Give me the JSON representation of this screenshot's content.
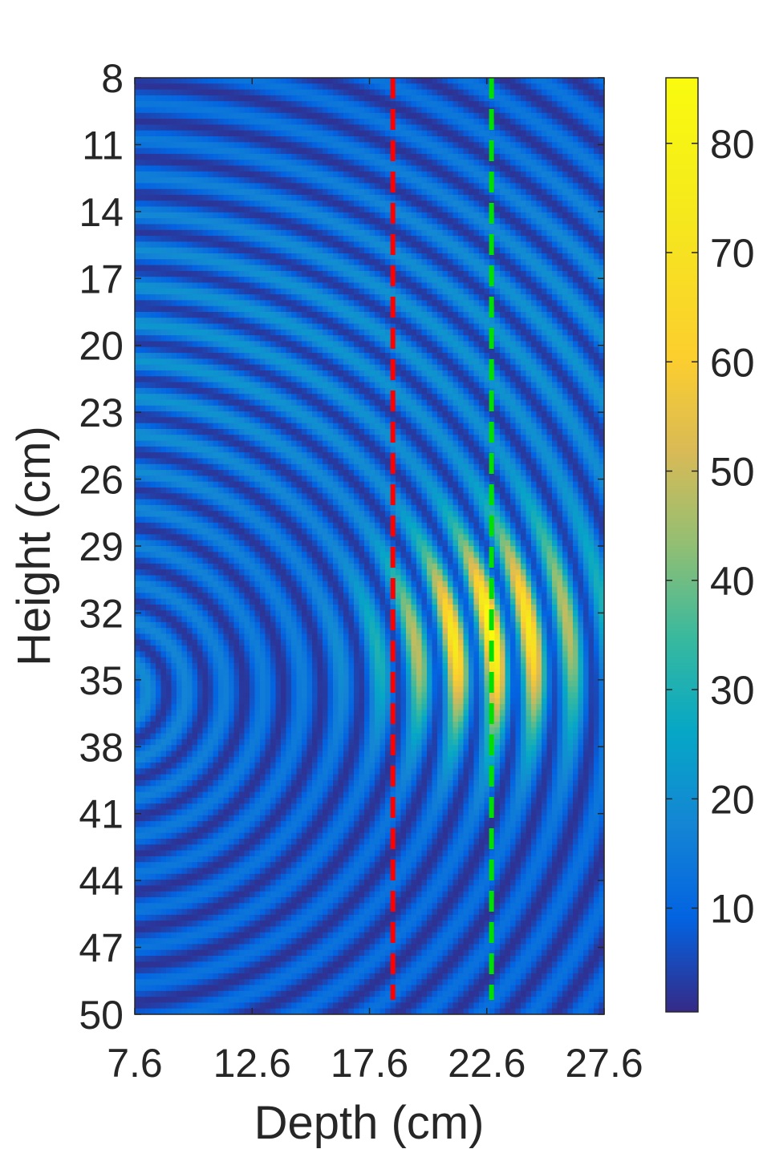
{
  "chart_data": {
    "type": "heatmap",
    "title": "",
    "xlabel": "Depth (cm)",
    "ylabel": "Height (cm)",
    "xlim": [
      7.6,
      27.6
    ],
    "ylim": [
      8,
      50
    ],
    "y_reversed": true,
    "x_ticks": [
      "7.6",
      "12.6",
      "17.6",
      "22.6",
      "27.6"
    ],
    "y_ticks": [
      "8",
      "11",
      "14",
      "17",
      "20",
      "23",
      "26",
      "29",
      "32",
      "35",
      "38",
      "41",
      "44",
      "47",
      "50"
    ],
    "colormap": "parula",
    "colorbar": {
      "range": [
        0.5,
        86
      ],
      "ticks": [
        "10",
        "20",
        "30",
        "40",
        "50",
        "60",
        "70",
        "80"
      ]
    },
    "vertical_lines": [
      {
        "x": 18.6,
        "color": "#ff0000",
        "style": "dashed"
      },
      {
        "x": 22.8,
        "color": "#00e000",
        "style": "dashed"
      }
    ],
    "field_description": {
      "source_center": {
        "x": 6.5,
        "y": 35.5
      },
      "ring_spacing_cm": 1.65,
      "peak_value": 85,
      "peak_location": {
        "x": 22.8,
        "y": 33
      }
    }
  }
}
